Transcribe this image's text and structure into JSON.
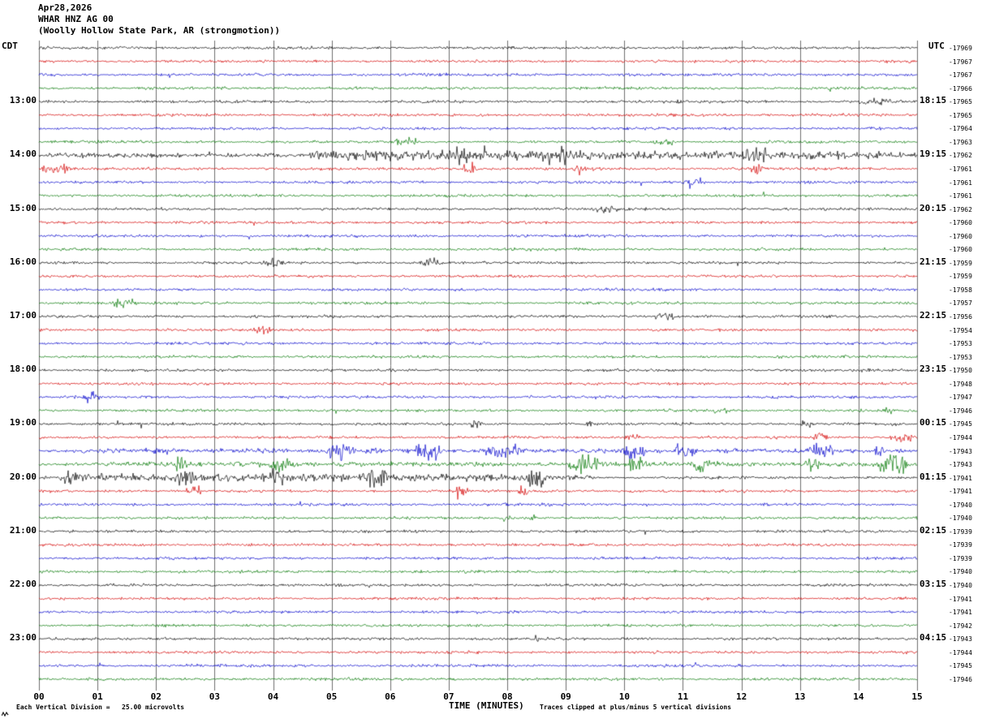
{
  "header": {
    "date": "Apr28,2026",
    "station": "WHAR HNZ AG 00",
    "location": "(Woolly Hollow State Park, AR (strongmotion))"
  },
  "axes": {
    "left_label": "CDT",
    "right_label": "UTC",
    "x_title": "TIME (MINUTES)",
    "x_ticks": [
      "00",
      "01",
      "02",
      "03",
      "04",
      "05",
      "06",
      "07",
      "08",
      "09",
      "10",
      "11",
      "12",
      "13",
      "14",
      "15"
    ]
  },
  "footer": {
    "scale_note": "Each Vertical Division =   25.00 microvolts",
    "clip_note": "Traces clipped at plus/minus 5 vertical divisions"
  },
  "chart_data": {
    "type": "line",
    "title": "Helicorder seismogram WHAR HNZ AG 00 (Woolly Hollow State Park, AR, strongmotion)",
    "row_count": 48,
    "minutes_per_row": 15,
    "x_range_minutes": [
      0,
      15
    ],
    "grid": true,
    "trace_colors": [
      "#000000",
      "#d40000",
      "#0000cc",
      "#007700"
    ],
    "color_cycle_note": "black, red, blue, green repeating; each hour row (xx:00) is black",
    "vertical_division_microvolts": 25.0,
    "clip_divisions": 5,
    "left_time_labels": [
      {
        "row": 4,
        "label": "13:00"
      },
      {
        "row": 8,
        "label": "14:00"
      },
      {
        "row": 12,
        "label": "15:00"
      },
      {
        "row": 16,
        "label": "16:00"
      },
      {
        "row": 20,
        "label": "17:00"
      },
      {
        "row": 24,
        "label": "18:00"
      },
      {
        "row": 28,
        "label": "19:00"
      },
      {
        "row": 32,
        "label": "20:00"
      },
      {
        "row": 36,
        "label": "21:00"
      },
      {
        "row": 40,
        "label": "22:00"
      },
      {
        "row": 44,
        "label": "23:00"
      }
    ],
    "right_time_labels": [
      {
        "row": 4,
        "label": "18:15"
      },
      {
        "row": 8,
        "label": "19:15"
      },
      {
        "row": 12,
        "label": "20:15"
      },
      {
        "row": 16,
        "label": "21:15"
      },
      {
        "row": 20,
        "label": "22:15"
      },
      {
        "row": 24,
        "label": "23:15"
      },
      {
        "row": 28,
        "label": "00:15"
      },
      {
        "row": 32,
        "label": "01:15"
      },
      {
        "row": 36,
        "label": "02:15"
      },
      {
        "row": 40,
        "label": "03:15"
      },
      {
        "row": 44,
        "label": "04:15"
      }
    ],
    "row_offset_values": [
      "-17969",
      "-17967",
      "-17967",
      "-17966",
      "-17965",
      "-17965",
      "-17964",
      "-17963",
      "-17962",
      "-17961",
      "-17961",
      "-17961",
      "-17962",
      "-17960",
      "-17960",
      "-17960",
      "-17959",
      "-17959",
      "-17958",
      "-17957",
      "-17956",
      "-17954",
      "-17953",
      "-17953",
      "-17950",
      "-17948",
      "-17947",
      "-17946",
      "-17945",
      "-17944",
      "-17943",
      "-17943",
      "-17941",
      "-17941",
      "-17940",
      "-17940",
      "-17939",
      "-17939",
      "-17939",
      "-17940",
      "-17940",
      "-17941",
      "-17941",
      "-17942",
      "-17943",
      "-17944",
      "-17945",
      "-17946"
    ],
    "base_noise_amp": 1.1,
    "events": [
      {
        "row": 4,
        "start": 14.0,
        "end": 14.6,
        "amp": 3.5
      },
      {
        "row": 7,
        "start": 6.0,
        "end": 6.5,
        "amp": 4.5
      },
      {
        "row": 7,
        "start": 10.4,
        "end": 10.9,
        "amp": 5
      },
      {
        "row": 8,
        "start": 0.0,
        "end": 4.3,
        "amp": 1.2
      },
      {
        "row": 8,
        "start": 4.3,
        "end": 15,
        "amp": 4
      },
      {
        "row": 8,
        "start": 7.0,
        "end": 7.4,
        "amp": 7
      },
      {
        "row": 8,
        "start": 8.8,
        "end": 9.2,
        "amp": 6
      },
      {
        "row": 8,
        "start": 12.0,
        "end": 12.5,
        "amp": 6
      },
      {
        "row": 9,
        "start": 0.0,
        "end": 0.6,
        "amp": 5
      },
      {
        "row": 9,
        "start": 7.2,
        "end": 7.5,
        "amp": 6
      },
      {
        "row": 9,
        "start": 9.1,
        "end": 9.4,
        "amp": 4
      },
      {
        "row": 9,
        "start": 12.1,
        "end": 12.4,
        "amp": 6
      },
      {
        "row": 10,
        "start": 11.0,
        "end": 11.4,
        "amp": 6
      },
      {
        "row": 12,
        "start": 9.4,
        "end": 9.9,
        "amp": 3.5
      },
      {
        "row": 16,
        "start": 3.8,
        "end": 4.2,
        "amp": 3.5
      },
      {
        "row": 16,
        "start": 6.5,
        "end": 6.9,
        "amp": 3.5
      },
      {
        "row": 19,
        "start": 1.2,
        "end": 1.7,
        "amp": 5
      },
      {
        "row": 20,
        "start": 10.5,
        "end": 10.9,
        "amp": 4.5
      },
      {
        "row": 21,
        "start": 3.6,
        "end": 4.0,
        "amp": 3.5
      },
      {
        "row": 26,
        "start": 0.75,
        "end": 1.05,
        "amp": 5.5
      },
      {
        "row": 27,
        "start": 11.5,
        "end": 11.8,
        "amp": 3
      },
      {
        "row": 27,
        "start": 14.4,
        "end": 14.7,
        "amp": 3
      },
      {
        "row": 28,
        "start": 7.3,
        "end": 7.6,
        "amp": 5
      },
      {
        "row": 28,
        "start": 9.3,
        "end": 9.55,
        "amp": 3
      },
      {
        "row": 28,
        "start": 13.0,
        "end": 13.3,
        "amp": 4.5
      },
      {
        "row": 29,
        "start": 10.0,
        "end": 10.3,
        "amp": 4
      },
      {
        "row": 29,
        "start": 13.2,
        "end": 13.5,
        "amp": 5
      },
      {
        "row": 29,
        "start": 14.5,
        "end": 15,
        "amp": 4
      },
      {
        "row": 30,
        "start": 0,
        "end": 15,
        "amp": 1.2
      },
      {
        "row": 30,
        "start": 4.9,
        "end": 5.4,
        "amp": 9
      },
      {
        "row": 30,
        "start": 6.4,
        "end": 6.9,
        "amp": 11
      },
      {
        "row": 30,
        "start": 7.5,
        "end": 8.4,
        "amp": 6
      },
      {
        "row": 30,
        "start": 9.9,
        "end": 10.4,
        "amp": 11
      },
      {
        "row": 30,
        "start": 10.8,
        "end": 11.3,
        "amp": 7
      },
      {
        "row": 30,
        "start": 13.1,
        "end": 13.6,
        "amp": 9
      },
      {
        "row": 30,
        "start": 14.2,
        "end": 14.5,
        "amp": 5
      },
      {
        "row": 31,
        "start": 0,
        "end": 15,
        "amp": 1.2
      },
      {
        "row": 31,
        "start": 2.3,
        "end": 2.6,
        "amp": 7
      },
      {
        "row": 31,
        "start": 3.9,
        "end": 4.4,
        "amp": 5
      },
      {
        "row": 31,
        "start": 9.0,
        "end": 9.6,
        "amp": 9
      },
      {
        "row": 31,
        "start": 10.0,
        "end": 10.4,
        "amp": 7
      },
      {
        "row": 31,
        "start": 11.1,
        "end": 11.6,
        "amp": 8
      },
      {
        "row": 31,
        "start": 13.0,
        "end": 13.4,
        "amp": 7
      },
      {
        "row": 31,
        "start": 14.3,
        "end": 14.9,
        "amp": 11
      },
      {
        "row": 32,
        "start": 0,
        "end": 9.5,
        "amp": 3
      },
      {
        "row": 32,
        "start": 0.4,
        "end": 0.7,
        "amp": 6
      },
      {
        "row": 32,
        "start": 2.3,
        "end": 2.7,
        "amp": 6
      },
      {
        "row": 32,
        "start": 3.9,
        "end": 4.3,
        "amp": 7
      },
      {
        "row": 32,
        "start": 5.5,
        "end": 6.0,
        "amp": 11
      },
      {
        "row": 32,
        "start": 8.3,
        "end": 8.7,
        "amp": 11
      },
      {
        "row": 33,
        "start": 2.5,
        "end": 2.8,
        "amp": 6
      },
      {
        "row": 33,
        "start": 7.1,
        "end": 7.35,
        "amp": 9
      },
      {
        "row": 33,
        "start": 8.15,
        "end": 8.4,
        "amp": 5
      },
      {
        "row": 35,
        "start": 7.9,
        "end": 8.1,
        "amp": 3
      },
      {
        "row": 35,
        "start": 8.3,
        "end": 8.5,
        "amp": 3
      },
      {
        "row": 44,
        "start": 8.4,
        "end": 8.6,
        "amp": 2.5
      }
    ]
  }
}
